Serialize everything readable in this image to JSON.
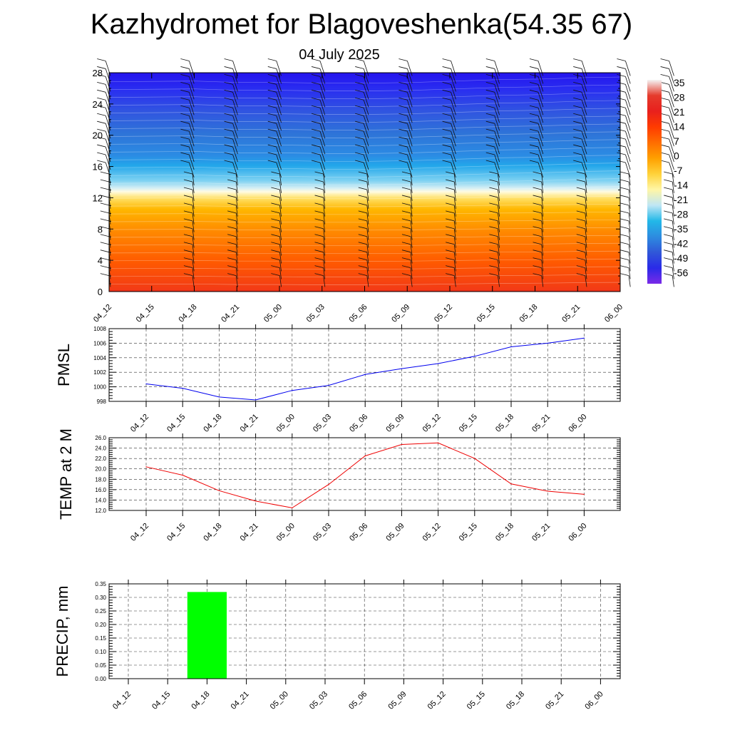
{
  "header": {
    "title": "Kazhydromet for Blagoveshenka(54.35 67)",
    "subtitle": "04 July 2025"
  },
  "chart_data": [
    {
      "type": "heatmap",
      "id": "upper-air",
      "categories": [
        "04_12",
        "04_15",
        "04_18",
        "04_21",
        "05_00",
        "05_03",
        "05_06",
        "05_09",
        "05_12",
        "05_15",
        "05_18",
        "05_21",
        "06_00"
      ],
      "ylim": [
        0,
        28
      ],
      "yticks": [
        0,
        4,
        8,
        12,
        16,
        20,
        24,
        28
      ],
      "freezing_level": [
        12.6,
        12.7,
        12.5,
        12.5,
        12.4,
        12.4,
        12.5,
        12.7,
        12.9,
        13.0,
        13.2,
        13.3,
        13.4
      ],
      "colorbar": {
        "labels": [
          "35",
          "28",
          "21",
          "14",
          "7",
          "0",
          "-7",
          "-14",
          "-21",
          "-28",
          "-35",
          "-42",
          "-49",
          "-56"
        ],
        "stops": [
          "#f4f4f4",
          "#e53b2c",
          "#e8201d",
          "#ff3b00",
          "#ff6d00",
          "#ffa000",
          "#ffd23a",
          "#fff6a6",
          "#bfe6f5",
          "#22b8e8",
          "#2d8ce0",
          "#3057d8",
          "#2a2ae8",
          "#7a2ae8"
        ]
      },
      "grid": false,
      "wind_barbs": true
    },
    {
      "type": "line",
      "id": "pmsl",
      "ylabel": "PMSL",
      "categories": [
        "04_12",
        "04_15",
        "04_18",
        "04_21",
        "05_00",
        "05_03",
        "05_06",
        "05_09",
        "05_12",
        "05_15",
        "05_18",
        "05_21",
        "06_00"
      ],
      "ylim": [
        998,
        1008
      ],
      "yticks": [
        998,
        1000,
        1002,
        1004,
        1006,
        1008
      ],
      "ytick_labels": [
        "998",
        "1000",
        "1002",
        "1004",
        "1006",
        "1008"
      ],
      "series": [
        {
          "values": [
            1000.4,
            999.8,
            998.6,
            998.2,
            999.5,
            1000.2,
            1001.7,
            1002.5,
            1003.2,
            1004.2,
            1005.5,
            1006.0,
            1006.7
          ],
          "color": "#0000ee"
        }
      ],
      "grid": true
    },
    {
      "type": "line",
      "id": "temp",
      "ylabel": "TEMP at 2 M",
      "categories": [
        "04_12",
        "04_15",
        "04_18",
        "04_21",
        "05_00",
        "05_03",
        "05_06",
        "05_09",
        "05_12",
        "05_15",
        "05_18",
        "05_21",
        "06_00"
      ],
      "ylim": [
        12,
        26
      ],
      "yticks": [
        12,
        14,
        16,
        18,
        20,
        22,
        24,
        26
      ],
      "ytick_labels": [
        "12.0",
        "14.0",
        "16.0",
        "18.0",
        "20.0",
        "22.0",
        "24.0",
        "26.0"
      ],
      "series": [
        {
          "values": [
            20.4,
            18.8,
            15.8,
            13.8,
            12.5,
            17.0,
            22.5,
            24.7,
            25.0,
            22.0,
            17.1,
            15.7,
            15.1
          ],
          "color": "#ee0000"
        }
      ],
      "grid": true
    },
    {
      "type": "bar",
      "id": "precip",
      "ylabel": "PRECIP, mm",
      "categories": [
        "04_12",
        "04_15",
        "04_18",
        "04_21",
        "05_00",
        "05_03",
        "05_06",
        "05_09",
        "05_12",
        "05_15",
        "05_18",
        "05_21",
        "06_00"
      ],
      "ylim": [
        0,
        0.35
      ],
      "yticks": [
        0,
        0.05,
        0.1,
        0.15,
        0.2,
        0.25,
        0.3,
        0.35
      ],
      "ytick_labels": [
        "0.00",
        "0.05",
        "0.10",
        "0.15",
        "0.20",
        "0.25",
        "0.30",
        "0.35"
      ],
      "values": [
        0,
        0,
        0.32,
        0,
        0,
        0,
        0,
        0,
        0,
        0,
        0,
        0,
        0
      ],
      "bar_color": "#00ff00",
      "grid": true
    }
  ]
}
